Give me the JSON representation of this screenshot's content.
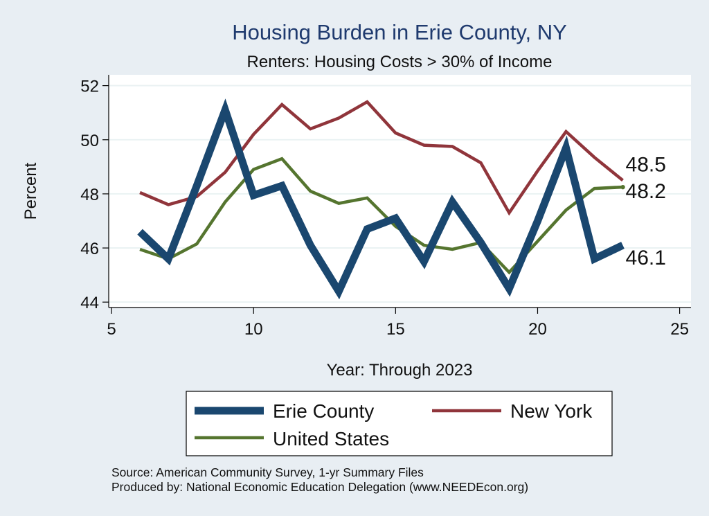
{
  "chart_data": {
    "type": "line",
    "title": "Housing Burden in Erie County, NY",
    "subtitle": "Renters: Housing Costs > 30% of Income",
    "xlabel": "Year: Through 2023",
    "ylabel": "Percent",
    "xlim": [
      4.9,
      25.4
    ],
    "ylim": [
      43.8,
      52.4
    ],
    "xticks": [
      5,
      10,
      15,
      20,
      25
    ],
    "yticks": [
      44,
      46,
      48,
      50,
      52
    ],
    "grid": true,
    "legend_position": "bottom",
    "x": [
      6,
      7,
      8,
      9,
      10,
      11,
      12,
      13,
      14,
      15,
      16,
      17,
      18,
      19,
      20,
      21,
      22,
      23
    ],
    "series": [
      {
        "name": "Erie County",
        "color": "#1a476f",
        "values": [
          46.6,
          45.6,
          48.3,
          51.1,
          47.95,
          48.3,
          46.1,
          44.4,
          46.7,
          47.1,
          45.5,
          47.7,
          46.2,
          44.5,
          47.0,
          49.7,
          45.6,
          46.1
        ],
        "end_label": "46.1"
      },
      {
        "name": "New York",
        "color": "#90353b",
        "values": [
          48.05,
          47.6,
          47.9,
          48.8,
          50.2,
          51.3,
          50.4,
          50.8,
          51.4,
          50.25,
          49.8,
          49.75,
          49.15,
          47.3,
          48.85,
          50.3,
          49.35,
          48.5
        ],
        "end_label": "48.5"
      },
      {
        "name": "United States",
        "color": "#55752f",
        "values": [
          45.95,
          45.6,
          46.15,
          47.7,
          48.9,
          49.3,
          48.1,
          47.65,
          47.85,
          46.8,
          46.1,
          45.95,
          46.2,
          45.1,
          46.25,
          47.4,
          48.2,
          48.25
        ],
        "end_label": "48.2"
      }
    ],
    "notes": [
      "Source: American Community Survey, 1-yr Summary Files",
      "Produced by: National Economic Education Delegation (www.NEEDEcon.org)"
    ]
  }
}
